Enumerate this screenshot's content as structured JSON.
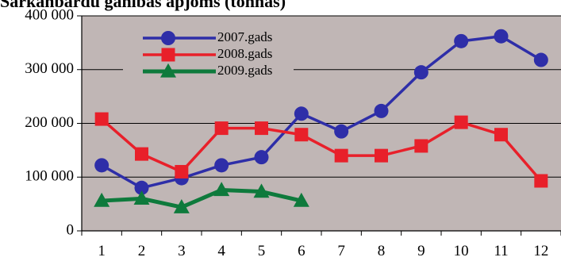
{
  "chart_data": {
    "type": "line",
    "title": "Sarkanbārdu ganības apjoms (tonnās)",
    "xlabel": "",
    "ylabel": "",
    "x": [
      1,
      2,
      3,
      4,
      5,
      6,
      7,
      8,
      9,
      10,
      11,
      12
    ],
    "x_tick_labels": [
      "1",
      "2",
      "3",
      "4",
      "5",
      "6",
      "7",
      "8",
      "9",
      "10",
      "11",
      "12"
    ],
    "ylim": [
      0,
      400000
    ],
    "y_ticks": [
      0,
      100000,
      200000,
      300000,
      400000
    ],
    "y_tick_labels": [
      "0",
      "100 000",
      "200 000",
      "300 000",
      "400 000"
    ],
    "grid": "horizontal",
    "legend_position": "top-left",
    "plot_background": "#c0b6b5",
    "series": [
      {
        "name": "2007.gads",
        "color": "#2e2ea8",
        "marker": "circle",
        "values": [
          122000,
          80000,
          98000,
          122000,
          137000,
          218000,
          185000,
          223000,
          295000,
          353000,
          362000,
          318000
        ]
      },
      {
        "name": "2008.gads",
        "color": "#e8202a",
        "marker": "square",
        "values": [
          208000,
          143000,
          110000,
          191000,
          191000,
          179000,
          140000,
          140000,
          158000,
          202000,
          179000,
          93000
        ]
      },
      {
        "name": "2009.gads",
        "color": "#0e7a3c",
        "marker": "triangle",
        "values": [
          56000,
          60000,
          44000,
          76000,
          73000,
          56000,
          null,
          null,
          null,
          null,
          null,
          null
        ]
      }
    ]
  }
}
